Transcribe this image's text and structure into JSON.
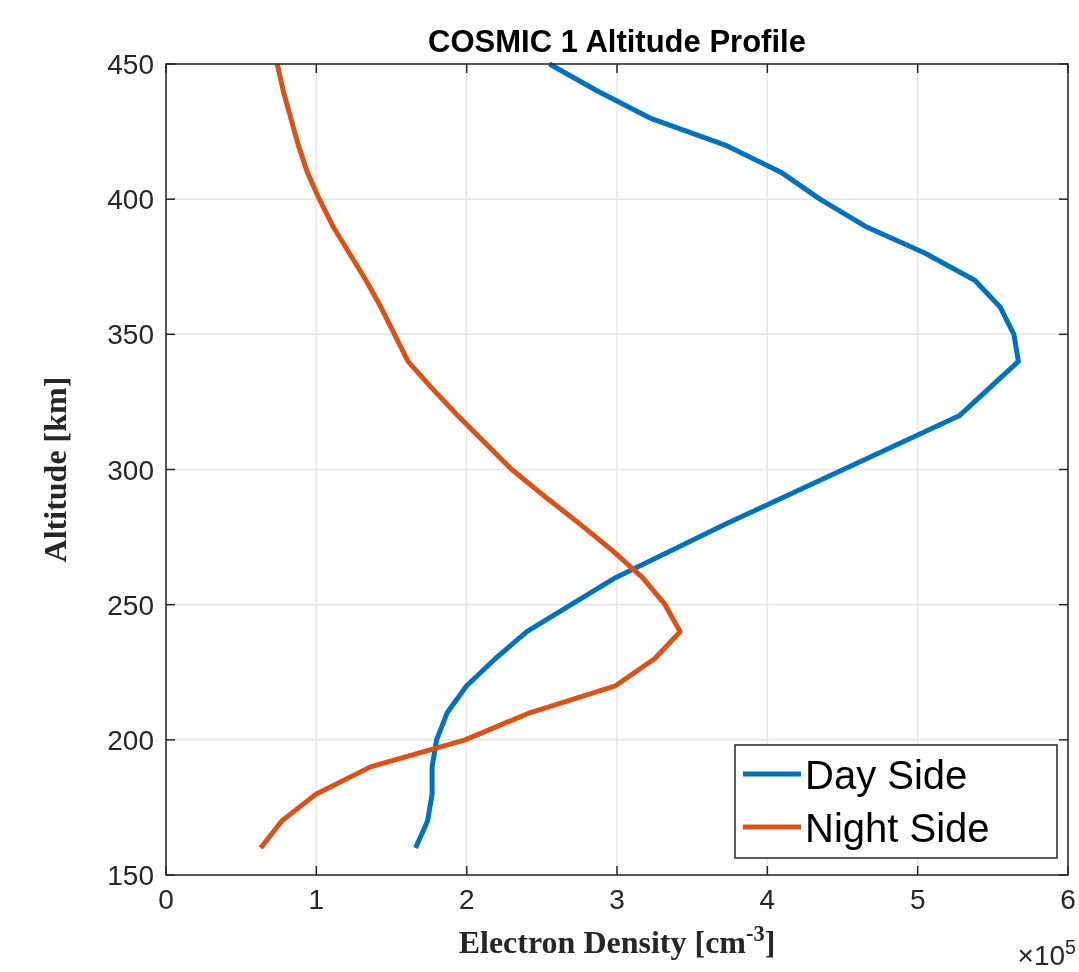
{
  "chart_data": {
    "type": "line",
    "title": "COSMIC 1 Altitude Profile",
    "xlabel": "Electron Density [cm$^{-3}$]",
    "ylabel": "Altitude [km]",
    "annotations": [
      "×10$^{5}$"
    ],
    "xlim": [
      0,
      6
    ],
    "xticks": [
      0,
      1,
      2,
      3,
      4,
      5,
      6
    ],
    "ylim": [
      150,
      450
    ],
    "yticks": [
      150,
      200,
      250,
      300,
      350,
      400,
      450
    ],
    "grid": true,
    "legend": "bottom right",
    "line_style": "solid",
    "marker": "none",
    "series": [
      {
        "name": "Day Side",
        "color": "#0072bd",
        "x": [
          1.66,
          1.74,
          1.77,
          1.77,
          1.8,
          1.87,
          2.0,
          2.19,
          2.4,
          2.99,
          3.73,
          5.28,
          5.67,
          5.64,
          5.55,
          5.38,
          5.05,
          4.65,
          4.35,
          4.09,
          3.72,
          3.22,
          2.87,
          2.55
        ],
        "values": [
          160,
          170,
          180,
          190,
          200,
          210,
          220,
          230,
          240,
          260,
          280,
          320,
          340,
          350,
          360,
          370,
          380,
          390,
          400,
          410,
          420,
          430,
          440,
          450
        ]
      },
      {
        "name": "Night Side",
        "color": "#d95319",
        "x": [
          0.63,
          0.77,
          1.0,
          1.36,
          1.99,
          2.42,
          2.99,
          3.25,
          3.42,
          3.32,
          3.17,
          2.97,
          2.75,
          2.52,
          2.3,
          2.12,
          1.94,
          1.77,
          1.61,
          1.52,
          1.43,
          1.33,
          1.22,
          1.11,
          1.02,
          0.94,
          0.88,
          0.83,
          0.78,
          0.74
        ],
        "values": [
          160,
          170,
          180,
          190,
          200,
          210,
          220,
          230,
          240,
          250,
          260,
          270,
          280,
          290,
          300,
          310,
          320,
          330,
          340,
          350,
          360,
          370,
          380,
          390,
          400,
          410,
          420,
          430,
          440,
          450
        ]
      }
    ]
  }
}
